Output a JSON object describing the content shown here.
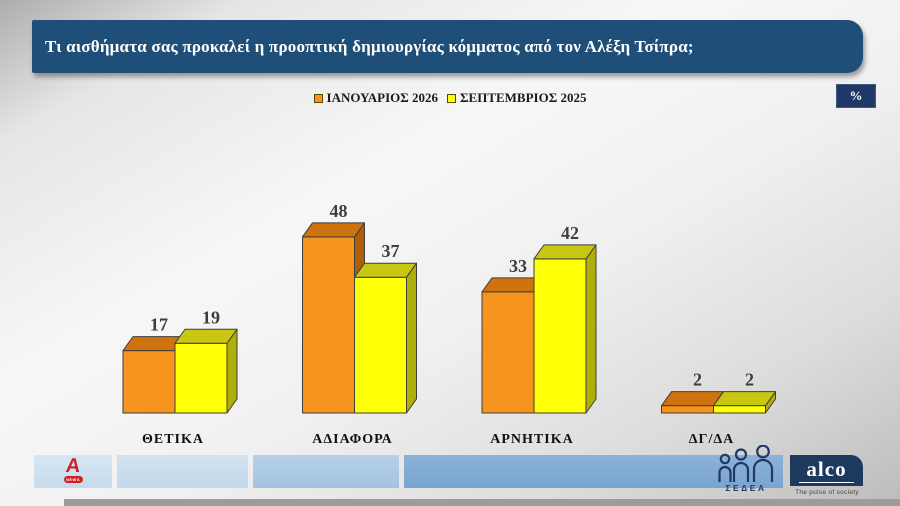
{
  "title": {
    "text": "Τι αισθήματα σας προκαλεί η προοπτική δημιουργίας κόμματος από τον Αλέξη Τσίπρα;"
  },
  "unit_badge": "%",
  "legend": [
    {
      "label": "ΙΑΝΟΥΑΡΙΟΣ 2026",
      "color": "#F7941E"
    },
    {
      "label": "ΣΕΠΤΕΜΒΡΙΟΣ 2025",
      "color": "#FFFF05"
    }
  ],
  "chart_data": {
    "type": "bar",
    "style": "3d-clustered",
    "title": "Τι αισθήματα σας προκαλεί η προοπτική δημιουργίας κόμματος από τον Αλέξη Τσίπρα;",
    "categories": [
      "ΘΕΤΙΚΑ",
      "ΑΔΙΑΦΟΡΑ",
      "ΑΡΝΗΤΙΚΑ",
      "ΔΓ/ΔΑ"
    ],
    "series": [
      {
        "name": "ΙΑΝΟΥΑΡΙΟΣ 2026",
        "values": [
          17,
          48,
          33,
          2
        ],
        "color": "#F7941E",
        "top_color": "#CE730E",
        "side_color": "#B05F07"
      },
      {
        "name": "ΣΕΠΤΕΜΒΡΙΟΣ 2025",
        "values": [
          19,
          37,
          42,
          2
        ],
        "color": "#FFFF05",
        "top_color": "#C8C813",
        "side_color": "#AFAF0A"
      }
    ],
    "unit": "%",
    "ylim": [
      0,
      50
    ],
    "grid": false,
    "data_labels": true,
    "legend_position": "top-center"
  },
  "footer": {
    "alpha_news": {
      "letter": "A",
      "badge": "NEWS",
      "color": "#CE2029"
    },
    "sedea": {
      "label": "ΣΕΔΕΑ",
      "color": "#1F3864"
    },
    "alco": {
      "name": "alco",
      "tagline": "The pulse of society",
      "bg": "#1D3A5E"
    }
  }
}
